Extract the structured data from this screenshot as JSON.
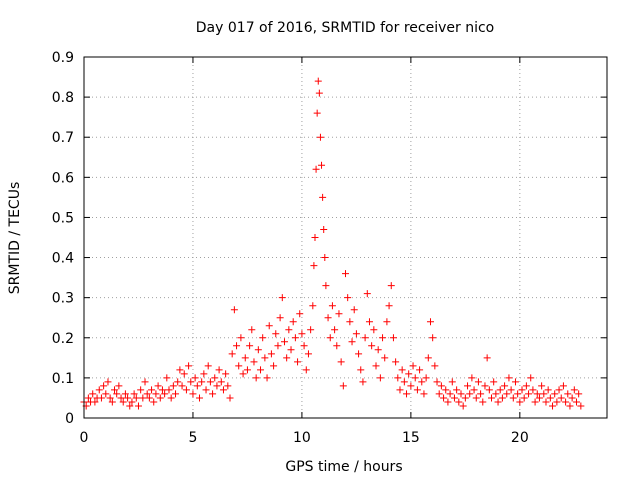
{
  "chart_data": {
    "type": "scatter",
    "title": "Day 017 of 2016, SRMTID for receiver nico",
    "xlabel": "GPS time / hours",
    "ylabel": "SRMTID / TECUs",
    "xlim": [
      0,
      24
    ],
    "ylim": [
      0,
      0.9
    ],
    "x_ticks": [
      0,
      5,
      10,
      15,
      20
    ],
    "x_tick_labels": [
      "0",
      "5",
      "10",
      "15",
      "20"
    ],
    "y_ticks": [
      0,
      0.1,
      0.2,
      0.3,
      0.4,
      0.5,
      0.6,
      0.7,
      0.8,
      0.9
    ],
    "y_tick_labels": [
      "0",
      "0.1",
      "0.2",
      "0.3",
      "0.4",
      "0.5",
      "0.6",
      "0.7",
      "0.8",
      "0.9"
    ],
    "grid": true,
    "marker": "+",
    "colors": {
      "series": "#ff0000",
      "grid": "#a0a0a0",
      "axis": "#000000"
    },
    "series": [
      {
        "name": "SRMTID",
        "points": [
          [
            0.0,
            0.04
          ],
          [
            0.1,
            0.03
          ],
          [
            0.2,
            0.05
          ],
          [
            0.3,
            0.04
          ],
          [
            0.4,
            0.06
          ],
          [
            0.5,
            0.04
          ],
          [
            0.6,
            0.05
          ],
          [
            0.7,
            0.07
          ],
          [
            0.8,
            0.05
          ],
          [
            0.9,
            0.08
          ],
          [
            1.0,
            0.06
          ],
          [
            1.1,
            0.09
          ],
          [
            1.2,
            0.05
          ],
          [
            1.3,
            0.04
          ],
          [
            1.4,
            0.07
          ],
          [
            1.5,
            0.06
          ],
          [
            1.6,
            0.08
          ],
          [
            1.7,
            0.05
          ],
          [
            1.8,
            0.04
          ],
          [
            1.9,
            0.06
          ],
          [
            2.0,
            0.05
          ],
          [
            2.1,
            0.03
          ],
          [
            2.2,
            0.04
          ],
          [
            2.3,
            0.06
          ],
          [
            2.4,
            0.05
          ],
          [
            2.5,
            0.03
          ],
          [
            2.6,
            0.07
          ],
          [
            2.7,
            0.05
          ],
          [
            2.8,
            0.09
          ],
          [
            2.9,
            0.06
          ],
          [
            3.0,
            0.05
          ],
          [
            3.1,
            0.07
          ],
          [
            3.2,
            0.04
          ],
          [
            3.3,
            0.06
          ],
          [
            3.4,
            0.08
          ],
          [
            3.5,
            0.05
          ],
          [
            3.6,
            0.07
          ],
          [
            3.7,
            0.06
          ],
          [
            3.8,
            0.1
          ],
          [
            3.9,
            0.07
          ],
          [
            4.0,
            0.05
          ],
          [
            4.1,
            0.08
          ],
          [
            4.2,
            0.06
          ],
          [
            4.3,
            0.09
          ],
          [
            4.4,
            0.12
          ],
          [
            4.5,
            0.08
          ],
          [
            4.6,
            0.11
          ],
          [
            4.7,
            0.07
          ],
          [
            4.8,
            0.13
          ],
          [
            4.9,
            0.09
          ],
          [
            5.0,
            0.06
          ],
          [
            5.1,
            0.1
          ],
          [
            5.2,
            0.08
          ],
          [
            5.3,
            0.05
          ],
          [
            5.4,
            0.09
          ],
          [
            5.5,
            0.11
          ],
          [
            5.6,
            0.07
          ],
          [
            5.7,
            0.13
          ],
          [
            5.8,
            0.09
          ],
          [
            5.9,
            0.06
          ],
          [
            6.0,
            0.1
          ],
          [
            6.1,
            0.08
          ],
          [
            6.2,
            0.12
          ],
          [
            6.3,
            0.09
          ],
          [
            6.4,
            0.07
          ],
          [
            6.5,
            0.11
          ],
          [
            6.6,
            0.08
          ],
          [
            6.7,
            0.05
          ],
          [
            6.8,
            0.16
          ],
          [
            6.9,
            0.27
          ],
          [
            7.0,
            0.18
          ],
          [
            7.1,
            0.13
          ],
          [
            7.2,
            0.2
          ],
          [
            7.3,
            0.11
          ],
          [
            7.4,
            0.15
          ],
          [
            7.5,
            0.12
          ],
          [
            7.6,
            0.18
          ],
          [
            7.7,
            0.22
          ],
          [
            7.8,
            0.14
          ],
          [
            7.9,
            0.1
          ],
          [
            8.0,
            0.17
          ],
          [
            8.1,
            0.12
          ],
          [
            8.2,
            0.2
          ],
          [
            8.3,
            0.15
          ],
          [
            8.4,
            0.1
          ],
          [
            8.5,
            0.23
          ],
          [
            8.6,
            0.16
          ],
          [
            8.7,
            0.13
          ],
          [
            8.8,
            0.21
          ],
          [
            8.9,
            0.18
          ],
          [
            9.0,
            0.25
          ],
          [
            9.1,
            0.3
          ],
          [
            9.2,
            0.19
          ],
          [
            9.3,
            0.15
          ],
          [
            9.4,
            0.22
          ],
          [
            9.5,
            0.17
          ],
          [
            9.6,
            0.24
          ],
          [
            9.7,
            0.2
          ],
          [
            9.8,
            0.14
          ],
          [
            9.9,
            0.26
          ],
          [
            10.0,
            0.21
          ],
          [
            10.1,
            0.18
          ],
          [
            10.2,
            0.12
          ],
          [
            10.3,
            0.16
          ],
          [
            10.4,
            0.22
          ],
          [
            10.5,
            0.28
          ],
          [
            10.55,
            0.38
          ],
          [
            10.6,
            0.45
          ],
          [
            10.65,
            0.62
          ],
          [
            10.7,
            0.76
          ],
          [
            10.75,
            0.84
          ],
          [
            10.8,
            0.81
          ],
          [
            10.85,
            0.7
          ],
          [
            10.9,
            0.63
          ],
          [
            10.95,
            0.55
          ],
          [
            11.0,
            0.47
          ],
          [
            11.05,
            0.4
          ],
          [
            11.1,
            0.33
          ],
          [
            11.2,
            0.25
          ],
          [
            11.3,
            0.2
          ],
          [
            11.4,
            0.28
          ],
          [
            11.5,
            0.22
          ],
          [
            11.6,
            0.18
          ],
          [
            11.7,
            0.26
          ],
          [
            11.8,
            0.14
          ],
          [
            11.9,
            0.08
          ],
          [
            12.0,
            0.36
          ],
          [
            12.1,
            0.3
          ],
          [
            12.2,
            0.24
          ],
          [
            12.3,
            0.19
          ],
          [
            12.4,
            0.27
          ],
          [
            12.5,
            0.21
          ],
          [
            12.6,
            0.16
          ],
          [
            12.7,
            0.12
          ],
          [
            12.8,
            0.09
          ],
          [
            12.9,
            0.2
          ],
          [
            13.0,
            0.31
          ],
          [
            13.1,
            0.24
          ],
          [
            13.2,
            0.18
          ],
          [
            13.3,
            0.22
          ],
          [
            13.4,
            0.13
          ],
          [
            13.5,
            0.17
          ],
          [
            13.6,
            0.1
          ],
          [
            13.7,
            0.2
          ],
          [
            13.8,
            0.15
          ],
          [
            13.9,
            0.24
          ],
          [
            14.0,
            0.28
          ],
          [
            14.1,
            0.33
          ],
          [
            14.2,
            0.2
          ],
          [
            14.3,
            0.14
          ],
          [
            14.4,
            0.1
          ],
          [
            14.5,
            0.07
          ],
          [
            14.6,
            0.12
          ],
          [
            14.7,
            0.09
          ],
          [
            14.8,
            0.06
          ],
          [
            14.9,
            0.11
          ],
          [
            15.0,
            0.08
          ],
          [
            15.1,
            0.13
          ],
          [
            15.2,
            0.1
          ],
          [
            15.3,
            0.07
          ],
          [
            15.4,
            0.12
          ],
          [
            15.5,
            0.09
          ],
          [
            15.6,
            0.06
          ],
          [
            15.7,
            0.1
          ],
          [
            15.8,
            0.15
          ],
          [
            15.9,
            0.24
          ],
          [
            16.0,
            0.2
          ],
          [
            16.1,
            0.13
          ],
          [
            16.2,
            0.09
          ],
          [
            16.3,
            0.06
          ],
          [
            16.4,
            0.08
          ],
          [
            16.5,
            0.05
          ],
          [
            16.6,
            0.07
          ],
          [
            16.7,
            0.04
          ],
          [
            16.8,
            0.06
          ],
          [
            16.9,
            0.09
          ],
          [
            17.0,
            0.05
          ],
          [
            17.1,
            0.07
          ],
          [
            17.2,
            0.04
          ],
          [
            17.3,
            0.06
          ],
          [
            17.4,
            0.03
          ],
          [
            17.5,
            0.05
          ],
          [
            17.6,
            0.08
          ],
          [
            17.7,
            0.06
          ],
          [
            17.8,
            0.1
          ],
          [
            17.9,
            0.07
          ],
          [
            18.0,
            0.05
          ],
          [
            18.1,
            0.09
          ],
          [
            18.2,
            0.06
          ],
          [
            18.3,
            0.04
          ],
          [
            18.4,
            0.08
          ],
          [
            18.5,
            0.15
          ],
          [
            18.6,
            0.07
          ],
          [
            18.7,
            0.05
          ],
          [
            18.8,
            0.09
          ],
          [
            18.9,
            0.06
          ],
          [
            19.0,
            0.04
          ],
          [
            19.1,
            0.07
          ],
          [
            19.2,
            0.05
          ],
          [
            19.3,
            0.08
          ],
          [
            19.4,
            0.06
          ],
          [
            19.5,
            0.1
          ],
          [
            19.6,
            0.07
          ],
          [
            19.7,
            0.05
          ],
          [
            19.8,
            0.09
          ],
          [
            19.9,
            0.06
          ],
          [
            20.0,
            0.04
          ],
          [
            20.1,
            0.07
          ],
          [
            20.2,
            0.05
          ],
          [
            20.3,
            0.08
          ],
          [
            20.4,
            0.06
          ],
          [
            20.5,
            0.1
          ],
          [
            20.6,
            0.07
          ],
          [
            20.7,
            0.04
          ],
          [
            20.8,
            0.06
          ],
          [
            20.9,
            0.05
          ],
          [
            21.0,
            0.08
          ],
          [
            21.1,
            0.06
          ],
          [
            21.2,
            0.04
          ],
          [
            21.3,
            0.07
          ],
          [
            21.4,
            0.05
          ],
          [
            21.5,
            0.03
          ],
          [
            21.6,
            0.06
          ],
          [
            21.7,
            0.04
          ],
          [
            21.8,
            0.07
          ],
          [
            21.9,
            0.05
          ],
          [
            22.0,
            0.08
          ],
          [
            22.1,
            0.04
          ],
          [
            22.2,
            0.06
          ],
          [
            22.3,
            0.03
          ],
          [
            22.4,
            0.05
          ],
          [
            22.5,
            0.07
          ],
          [
            22.6,
            0.04
          ],
          [
            22.7,
            0.06
          ],
          [
            22.8,
            0.03
          ]
        ]
      }
    ]
  }
}
